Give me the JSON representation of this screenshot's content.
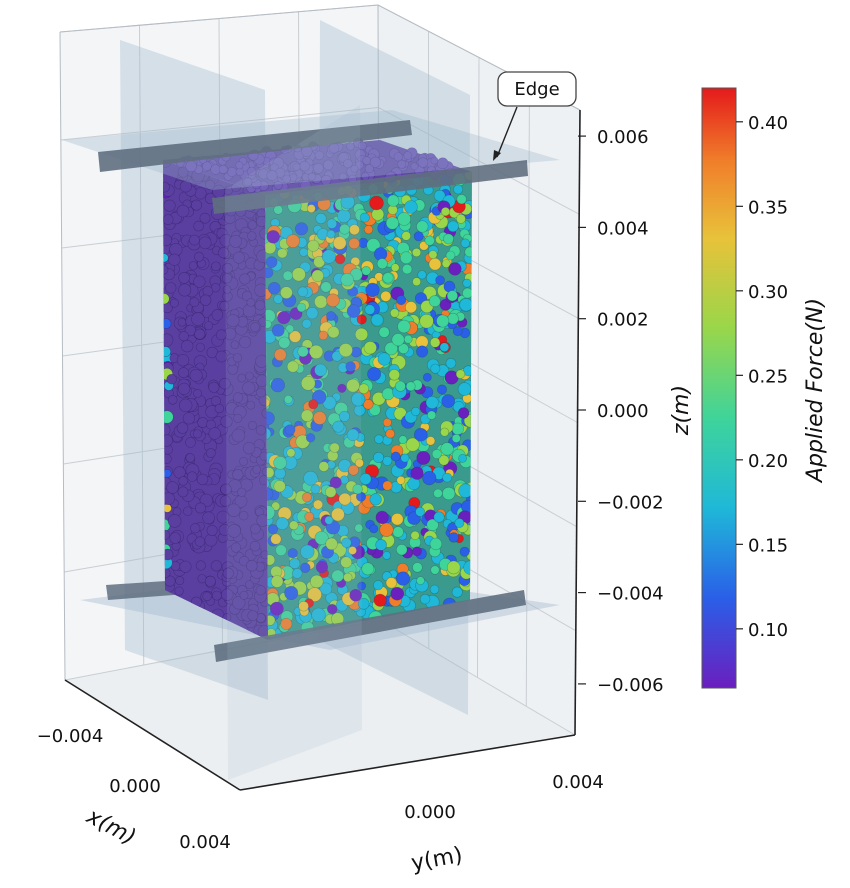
{
  "chart_data": {
    "type": "scatter3d",
    "title": "",
    "xlabel": "x(m)",
    "ylabel": "y(m)",
    "zlabel": "z(m)",
    "x_ticks": [
      "−0.004",
      "0.000",
      "0.004"
    ],
    "y_ticks": [
      "0.000",
      "0.004"
    ],
    "z_ticks": [
      "0.006",
      "0.004",
      "0.002",
      "0.000",
      "−0.002",
      "−0.004",
      "−0.006"
    ],
    "x_tick_values": [
      -0.004,
      0.0,
      0.004
    ],
    "y_tick_values": [
      0.0,
      0.004
    ],
    "z_tick_values": [
      0.006,
      0.004,
      0.002,
      0.0,
      -0.002,
      -0.004,
      -0.006
    ],
    "zlim": [
      -0.0066,
      0.0072
    ],
    "specimen_extent": {
      "x": [
        -0.0025,
        0.0025
      ],
      "y": [
        -0.0025,
        0.0025
      ],
      "z": [
        -0.005,
        0.0062
      ]
    },
    "annotation": {
      "text": "Edge",
      "target": "top loading platen edge"
    },
    "colorbar": {
      "label": "Applied Force(N)",
      "min": 0.065,
      "max": 0.42,
      "ticks": [
        "0.40",
        "0.35",
        "0.30",
        "0.25",
        "0.20",
        "0.15",
        "0.10"
      ],
      "tick_values": [
        0.4,
        0.35,
        0.3,
        0.25,
        0.2,
        0.15,
        0.1
      ],
      "colormap": "rainbow",
      "colors": [
        "#6a1fbf",
        "#2a5fe8",
        "#1fb8d8",
        "#3fd49a",
        "#9ad64a",
        "#e8c23a",
        "#f07d2a",
        "#e41a1c"
      ]
    },
    "particle_colors": {
      "shaded_face": "#5a3fa0",
      "platen": "#5f6f80",
      "plane": "#9fb6cc"
    }
  }
}
